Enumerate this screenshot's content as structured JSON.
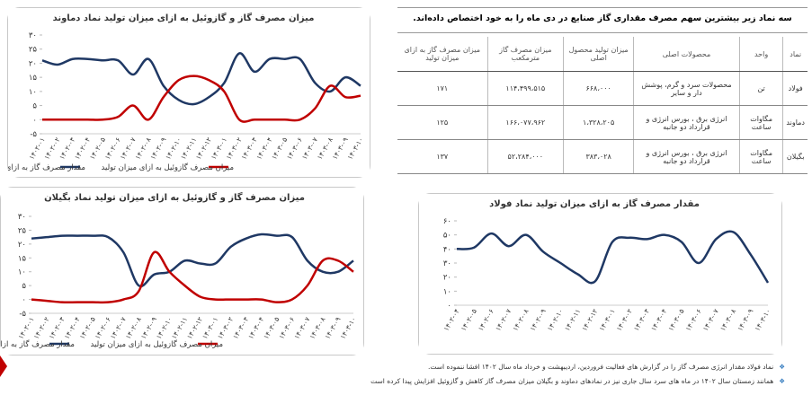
{
  "chart_data": [
    {
      "type": "line",
      "title": "میزان مصرف گاز و گازوئیل به ازای میزان تولید نماد دماوند",
      "categories": [
        "۱۴۰۲-۰۱",
        "۱۴۰۲-۰۲",
        "۱۴۰۲-۰۳",
        "۱۴۰۲-۰۴",
        "۱۴۰۲-۰۵",
        "۱۴۰۲-۰۶",
        "۱۴۰۲-۰۷",
        "۱۴۰۲-۰۸",
        "۱۴۰۲-۰۹",
        "۱۴۰۲-۱۰",
        "۱۴۰۲-۱۱",
        "۱۴۰۲-۱۲",
        "۱۴۰۳-۰۱",
        "۱۴۰۳-۰۲",
        "۱۴۰۳-۰۳",
        "۱۴۰۳-۰۴",
        "۱۴۰۳-۰۵",
        "۱۴۰۳-۰۶",
        "۱۴۰۳-۰۷",
        "۱۴۰۳-۰۸",
        "۱۴۰۳-۰۹",
        "۱۴۰۳-۱۰"
      ],
      "series": [
        {
          "name": "مقدار مصرف گاز به ازای میزان تولید",
          "color": "#1f3864",
          "values": [
            21,
            19.5,
            21.5,
            21.5,
            21,
            21,
            16,
            21.5,
            12,
            7,
            5.5,
            8,
            13,
            23.5,
            17,
            21.5,
            21.5,
            21.5,
            13,
            10,
            15,
            12
          ]
        },
        {
          "name": "میزان مصرف گازوئیل به ازای میزان تولید",
          "color": "#c00000",
          "values": [
            0,
            0,
            0,
            0,
            0,
            1,
            5,
            0,
            8,
            14,
            15.5,
            14,
            10,
            0,
            0,
            0,
            0,
            0,
            4,
            12,
            8,
            8.5
          ]
        }
      ],
      "ylim": [
        -5,
        30
      ],
      "yticks": [
        {
          "value": -5,
          "label": "-۵"
        },
        {
          "value": 0,
          "label": "۰"
        },
        {
          "value": 5,
          "label": "۵"
        },
        {
          "value": 10,
          "label": "۱۰"
        },
        {
          "value": 15,
          "label": "۱۵"
        },
        {
          "value": 20,
          "label": "۲۰"
        },
        {
          "value": 25,
          "label": "۲۵"
        },
        {
          "value": 30,
          "label": "۳۰"
        }
      ],
      "legend": "bottom"
    },
    {
      "type": "line",
      "title": "میزان مصرف گاز و گازوئیل به ازای میزان تولید نماد بگیلان",
      "categories": [
        "۱۴۰۲-۰۱",
        "۱۴۰۲-۰۲",
        "۱۴۰۲-۰۳",
        "۱۴۰۲-۰۴",
        "۱۴۰۲-۰۵",
        "۱۴۰۲-۰۶",
        "۱۴۰۲-۰۷",
        "۱۴۰۲-۰۸",
        "۱۴۰۲-۰۹",
        "۱۴۰۲-۱۰",
        "۱۴۰۲-۱۱",
        "۱۴۰۲-۱۲",
        "۱۴۰۳-۰۱",
        "۱۴۰۳-۰۲",
        "۱۴۰۳-۰۳",
        "۱۴۰۳-۰۴",
        "۱۴۰۳-۰۵",
        "۱۴۰۳-۰۶",
        "۱۴۰۳-۰۷",
        "۱۴۰۳-۰۸",
        "۱۴۰۳-۰۹",
        "۱۴۰۳-۱۰"
      ],
      "series": [
        {
          "name": "مقدار مصرف گاز به ازای میزان تولید",
          "color": "#1f3864",
          "values": [
            22,
            22.5,
            23,
            23,
            23,
            22.5,
            17,
            5,
            9,
            10,
            14,
            13,
            13,
            19,
            22,
            23.5,
            23,
            22.5,
            14,
            10,
            10,
            14
          ]
        },
        {
          "name": "میزان مصرف گازوئیل به ازای میزان تولید",
          "color": "#c00000",
          "values": [
            0,
            -0.5,
            -1,
            -1,
            -1,
            -1,
            0,
            3,
            17,
            10,
            5,
            1,
            0,
            0,
            0,
            0,
            -1,
            0,
            5,
            14,
            14,
            10
          ]
        }
      ],
      "ylim": [
        -5,
        30
      ],
      "yticks": [
        {
          "value": -5,
          "label": "-۵"
        },
        {
          "value": 0,
          "label": "۰"
        },
        {
          "value": 5,
          "label": "۵"
        },
        {
          "value": 10,
          "label": "۱۰"
        },
        {
          "value": 15,
          "label": "۱۵"
        },
        {
          "value": 20,
          "label": "۲۰"
        },
        {
          "value": 25,
          "label": "۲۵"
        },
        {
          "value": 30,
          "label": "۳۰"
        }
      ],
      "legend": "bottom"
    },
    {
      "type": "line",
      "title": "مقدار مصرف گاز به ازای میزان تولید نماد فولاد",
      "categories": [
        "۱۴۰۲-۰۴",
        "۱۴۰۲-۰۵",
        "۱۴۰۲-۰۶",
        "۱۴۰۲-۰۷",
        "۱۴۰۲-۰۸",
        "۱۴۰۲-۰۹",
        "۱۴۰۲-۱۰",
        "۱۴۰۲-۱۱",
        "۱۴۰۲-۱۲",
        "۱۴۰۳-۰۱",
        "۱۴۰۳-۰۲",
        "۱۴۰۳-۰۳",
        "۱۴۰۳-۰۴",
        "۱۴۰۳-۰۵",
        "۱۴۰۳-۰۶",
        "۱۴۰۳-۰۷",
        "۱۴۰۳-۰۸",
        "۱۴۰۳-۰۹",
        "۱۴۰۳-۱۰"
      ],
      "series": [
        {
          "color": "#1f3864",
          "values": [
            40,
            41,
            51,
            42,
            50,
            38,
            30,
            22,
            17,
            45,
            48,
            47,
            50,
            45,
            30,
            47,
            52,
            36,
            16
          ]
        }
      ],
      "ylim": [
        0,
        60
      ],
      "yticks": [
        {
          "value": 0,
          "label": "۰"
        },
        {
          "value": 10,
          "label": "۱۰"
        },
        {
          "value": 20,
          "label": "۲۰"
        },
        {
          "value": 30,
          "label": "۳۰"
        },
        {
          "value": 40,
          "label": "۴۰"
        },
        {
          "value": 50,
          "label": "۵۰"
        },
        {
          "value": 60,
          "label": "۶۰"
        }
      ]
    }
  ],
  "table": {
    "title": "سه نماد زیر بیشترین سهم مصرف مقداری گاز صنایع در دی ماه را به خود اختصاص داده‌اند.",
    "header": [
      "نماد",
      "واحد",
      "محصولات اصلی",
      "میزان تولید محصول اصلی",
      "میزان مصرف گاز مترمکعب",
      "میزان مصرف گاز به ازای میزان تولید"
    ],
    "rows": [
      [
        "فولاد",
        "تن",
        "محصولات سرد و گرم، پوشش دار و سایر",
        "۶۶۸،۰۰۰",
        "۱۱۴،۴۹۹،۵۱۵",
        "۱۷۱"
      ],
      [
        "دماوند",
        "مگاوات ساعت",
        "انرژی برق ، بورس انرژی و قرارداد دو جانبه",
        "۱،۳۲۸،۲۰۵",
        "۱۶۶،۰۷۷،۹۶۲",
        "۱۲۵"
      ],
      [
        "بگیلان",
        "مگاوات ساعت",
        "انرژی برق ، بورس انرژی و قرارداد دو جانبه",
        "۳۸۳،۰۲۸",
        "۵۲،۲۸۴،۰۰۰",
        "۱۳۷"
      ]
    ]
  },
  "notes": [
    "نماد فولاد مقدار انرژی مصرف گاز را در گزارش های فعالیت فروردین، اردیبهشت و خرداد ماه سال ۱۴۰۲ افشا ننموده است.",
    "همانند زمستان سال ۱۴۰۲ در ماه های سرد سال جاری نیز در نمادهای دماوند و بگیلان میزان مصرف گاز کاهش و گازوئیل افزایش پیدا کرده است"
  ]
}
